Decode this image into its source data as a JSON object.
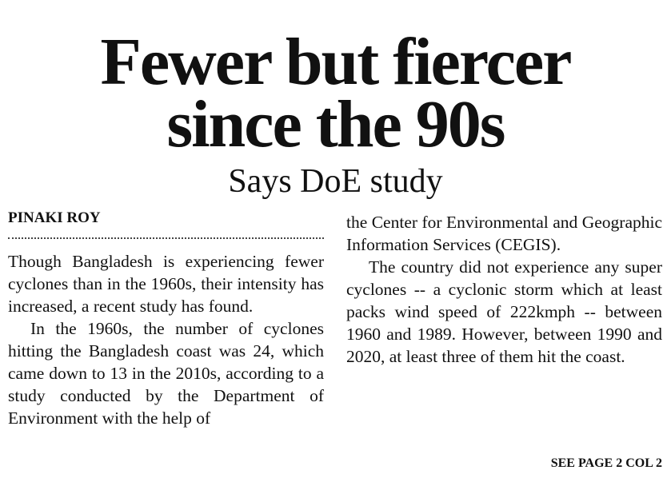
{
  "headline": [
    "Fewer but fiercer",
    "since the 90s"
  ],
  "subtitle": "Says DoE study",
  "byline": "PINAKI ROY",
  "columns": [
    [
      {
        "text": "Though Bangladesh is experiencing fewer cyclones than in the 1960s, their intensity has increased, a recent study has found.",
        "indent": false
      },
      {
        "text": "In the 1960s, the number of cyclones hitting the Bangladesh coast was 24, which came down to 13 in the 2010s, according to a study conducted by the Department of Environment with the help of",
        "indent": true
      }
    ],
    [
      {
        "text": "the Center for Environmental and Geographic Information Services (CEGIS).",
        "indent": false
      },
      {
        "text": "The country did not experience any super cyclones -- a cyclonic storm which at least packs wind speed of 222kmph -- between 1960 and 1989. However, between 1990 and 2020, at least three of them hit the coast.",
        "indent": true
      }
    ]
  ],
  "continuation": "SEE PAGE 2 COL 2"
}
